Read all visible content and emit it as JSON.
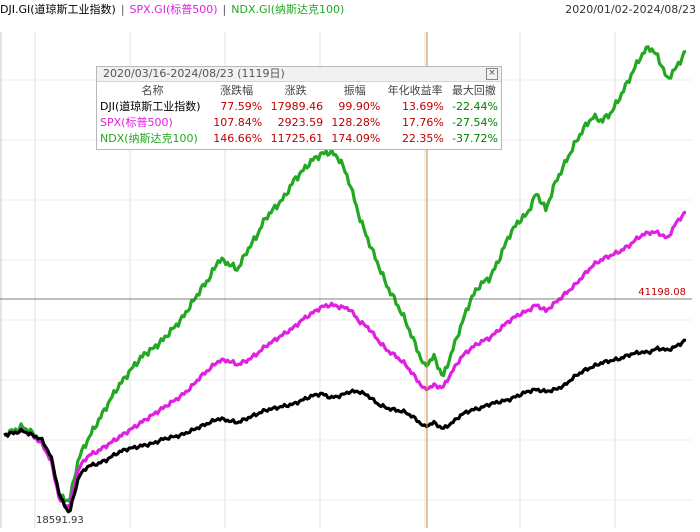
{
  "legend": {
    "items": [
      {
        "label": "DJI.GI(道琼斯工业指数)",
        "color": "#000000"
      },
      {
        "label": "SPX.GI(标普500)",
        "color": "#e020e0"
      },
      {
        "label": "NDX.GI(纳斯达克100)",
        "color": "#22a822"
      }
    ],
    "separator": "|",
    "date_range": "2020/01/02-2024/08/23"
  },
  "stats": {
    "title": "2020/03/16-2024/08/23 (1119日)",
    "headers": [
      "名称",
      "涨跌幅",
      "涨跌",
      "振幅",
      "年化收益率",
      "最大回撤"
    ],
    "rows": [
      {
        "name": "DJI(道琼斯工业指数)",
        "color": "#000000",
        "change_pct": "77.59%",
        "change": "17989.46",
        "amplitude": "99.90%",
        "annualized": "13.69%",
        "max_drawdown": "-22.44%"
      },
      {
        "name": "SPX(标普500)",
        "color": "#e020e0",
        "change_pct": "107.84%",
        "change": "2923.59",
        "amplitude": "128.28%",
        "annualized": "17.76%",
        "max_drawdown": "-27.54%"
      },
      {
        "name": "NDX(纳斯达克100)",
        "color": "#22a822",
        "change_pct": "146.66%",
        "change": "11725.61",
        "amplitude": "174.09%",
        "annualized": "22.35%",
        "max_drawdown": "-37.72%"
      }
    ]
  },
  "chart_data": {
    "type": "line",
    "x_start": "2020/01/02",
    "x_end": "2024/08/23",
    "crosshair_y_label": "41198.08",
    "low_label": "18591.93",
    "y_scale_labels": false,
    "grid": true,
    "series": [
      {
        "name": "DJI.GI(道琼斯工业指数)",
        "color": "#000000",
        "values": [
          100,
          101,
          102,
          100,
          98,
          90,
          70,
          62,
          80,
          85,
          86,
          88,
          91,
          93,
          94,
          95,
          96,
          98,
          99,
          100,
          102,
          104,
          106,
          108,
          107,
          106,
          108,
          110,
          112,
          113,
          114,
          115,
          117,
          119,
          120,
          118,
          119,
          121,
          121,
          119,
          115,
          113,
          112,
          111,
          108,
          104,
          106,
          103,
          106,
          110,
          112,
          113,
          115,
          116,
          117,
          119,
          121,
          122,
          121,
          122,
          124,
          128,
          131,
          133,
          135,
          136,
          137,
          139,
          140,
          140,
          142,
          141,
          143,
          146
        ]
      },
      {
        "name": "SPX.GI(标普500)",
        "color": "#e020e0",
        "values": [
          100,
          101,
          102,
          100,
          96,
          88,
          68,
          65,
          84,
          90,
          92,
          95,
          98,
          101,
          104,
          107,
          110,
          113,
          116,
          119,
          123,
          128,
          132,
          136,
          136,
          134,
          136,
          139,
          143,
          146,
          149,
          152,
          156,
          159,
          162,
          163,
          162,
          161,
          155,
          152,
          146,
          141,
          138,
          134,
          128,
          122,
          124,
          123,
          131,
          138,
          142,
          145,
          147,
          151,
          155,
          158,
          160,
          163,
          160,
          164,
          168,
          172,
          177,
          182,
          185,
          187,
          189,
          192,
          196,
          198,
          198,
          195,
          203,
          208
        ]
      },
      {
        "name": "NDX.GI(纳斯达克100)",
        "color": "#22a822",
        "values": [
          100,
          102,
          104,
          101,
          97,
          88,
          70,
          68,
          89,
          98,
          106,
          114,
          122,
          128,
          134,
          139,
          142,
          146,
          151,
          156,
          163,
          170,
          176,
          185,
          183,
          180,
          189,
          196,
          205,
          210,
          215,
          223,
          228,
          233,
          236,
          237,
          233,
          222,
          206,
          194,
          183,
          172,
          164,
          155,
          144,
          133,
          138,
          128,
          141,
          154,
          166,
          173,
          176,
          185,
          196,
          203,
          207,
          217,
          209,
          222,
          231,
          240,
          248,
          254,
          252,
          256,
          264,
          273,
          282,
          288,
          283,
          272,
          278,
          286
        ]
      }
    ]
  }
}
